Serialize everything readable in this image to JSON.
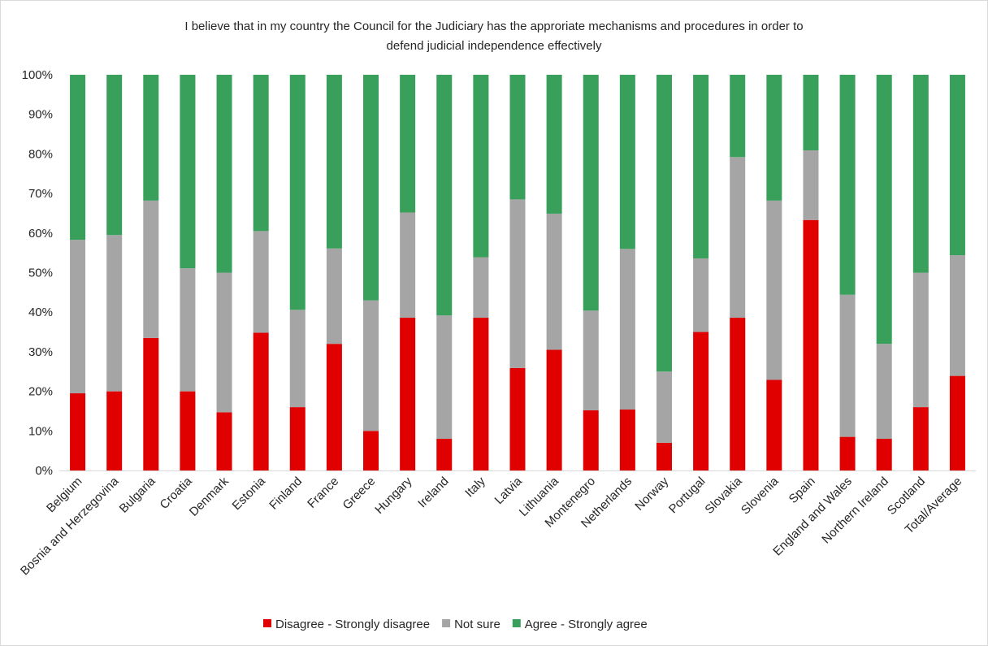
{
  "chart_data": {
    "type": "bar",
    "stacked": true,
    "percent": true,
    "title_lines": [
      "I believe that in my country the Council for the Judiciary has the approriate mechanisms and procedures  in order to",
      "defend judicial independence effectively"
    ],
    "categories": [
      "Belgium",
      "Bosnia and Herzegovina",
      "Bulgaria",
      "Croatia",
      "Denmark",
      "Estonia",
      "Finland",
      "France",
      "Greece",
      "Hungary",
      "Ireland",
      "Italy",
      "Latvia",
      "Lithuania",
      "Montenegro",
      "Netherlands",
      "Norway",
      "Portugal",
      "Slovakia",
      "Slovenia",
      "Spain",
      "England and Wales",
      "Northern Ireland",
      "Scotland",
      "Total/Average"
    ],
    "series": [
      {
        "name": "Disagree - Strongly disagree",
        "color": "#e00000",
        "values": [
          19.5,
          20.0,
          33.5,
          20.0,
          14.7,
          34.8,
          16.0,
          32.0,
          10.0,
          38.6,
          8.0,
          38.6,
          25.9,
          30.5,
          15.2,
          15.4,
          7.0,
          35.0,
          38.6,
          22.9,
          63.3,
          8.5,
          8.0,
          16.0,
          23.9
        ]
      },
      {
        "name": "Not sure",
        "color": "#a5a5a5",
        "values": [
          38.8,
          39.5,
          34.7,
          31.1,
          35.3,
          25.7,
          24.6,
          24.1,
          33.0,
          26.6,
          31.2,
          15.3,
          42.6,
          34.4,
          25.2,
          40.6,
          18.0,
          18.6,
          40.6,
          45.3,
          17.6,
          35.9,
          24.0,
          34.0,
          30.5
        ]
      },
      {
        "name": "Agree - Strongly agree",
        "color": "#38a05a",
        "values": [
          41.7,
          40.5,
          31.8,
          48.9,
          50.0,
          39.5,
          59.4,
          43.9,
          57.0,
          34.8,
          60.8,
          46.1,
          31.5,
          35.1,
          59.6,
          44.0,
          75.0,
          46.4,
          20.8,
          31.8,
          19.1,
          55.6,
          68.0,
          50.0,
          45.6
        ]
      }
    ],
    "yticks": [
      "0%",
      "10%",
      "20%",
      "30%",
      "40%",
      "50%",
      "60%",
      "70%",
      "80%",
      "90%",
      "100%"
    ],
    "ylim": [
      0,
      100
    ],
    "grid": false,
    "legend_position": "bottom"
  }
}
